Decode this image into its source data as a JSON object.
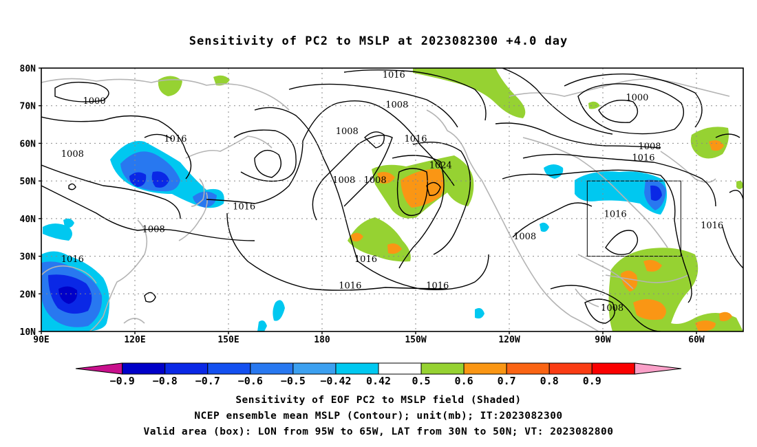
{
  "title": "Sensitivity of PC2 to MSLP at 2023082300 +4.0 day",
  "lat_labels": [
    "80N",
    "70N",
    "60N",
    "50N",
    "40N",
    "30N",
    "20N",
    "10N"
  ],
  "lon_labels": [
    "90E",
    "120E",
    "150E",
    "180",
    "150W",
    "120W",
    "90W",
    "60W"
  ],
  "contour_labels": [
    {
      "text": "1000",
      "lon": 107,
      "lat": 71
    },
    {
      "text": "1016",
      "lon": 133,
      "lat": 61
    },
    {
      "text": "1008",
      "lon": 100,
      "lat": 57
    },
    {
      "text": "1008",
      "lon": -172,
      "lat": 63
    },
    {
      "text": "1008",
      "lon": -173,
      "lat": 50
    },
    {
      "text": "1016",
      "lon": 155,
      "lat": 43
    },
    {
      "text": "1008",
      "lon": 126,
      "lat": 37
    },
    {
      "text": "1016",
      "lon": 100,
      "lat": 29
    },
    {
      "text": "1016",
      "lon": -157,
      "lat": 78
    },
    {
      "text": "1008",
      "lon": -156,
      "lat": 70
    },
    {
      "text": "1016",
      "lon": -150,
      "lat": 61
    },
    {
      "text": "1024",
      "lon": -142,
      "lat": 54
    },
    {
      "text": "1008",
      "lon": -163,
      "lat": 50
    },
    {
      "text": "1016",
      "lon": -166,
      "lat": 29
    },
    {
      "text": "1016",
      "lon": -171,
      "lat": 22
    },
    {
      "text": "1016",
      "lon": -143,
      "lat": 22
    },
    {
      "text": "1008",
      "lon": -115,
      "lat": 35
    },
    {
      "text": "1000",
      "lon": -79,
      "lat": 72
    },
    {
      "text": "1008",
      "lon": -75,
      "lat": 59
    },
    {
      "text": "1016",
      "lon": -77,
      "lat": 56
    },
    {
      "text": "1016",
      "lon": -86,
      "lat": 41
    },
    {
      "text": "1016",
      "lon": -55,
      "lat": 38
    },
    {
      "text": "1008",
      "lon": -87,
      "lat": 16
    }
  ],
  "colorbar": {
    "colors": [
      "#c8108c",
      "#0000c8",
      "#0a28e6",
      "#1450f0",
      "#2878f0",
      "#3ca0f0",
      "#00c8f0",
      "#ffffff",
      "#96d232",
      "#fa9614",
      "#fa6414",
      "#fa3c14",
      "#fa0000",
      "#faa0c8"
    ],
    "labels": [
      "−0.9",
      "−0.8",
      "−0.7",
      "−0.6",
      "−0.5",
      "−0.42",
      "0.42",
      "0.5",
      "0.6",
      "0.7",
      "0.8",
      "0.9"
    ]
  },
  "box": {
    "lon_min": -95,
    "lon_max": -65,
    "lat_min": 30,
    "lat_max": 50
  },
  "caption_line1": "Sensitivity of EOF PC2 to MSLP field (Shaded)",
  "caption_line2": "NCEP ensemble mean MSLP (Contour); unit(mb); IT:2023082300",
  "caption_line3": "Valid area (box): LON from 95W to 65W, LAT from 30N to 50N; VT: 2023082800"
}
